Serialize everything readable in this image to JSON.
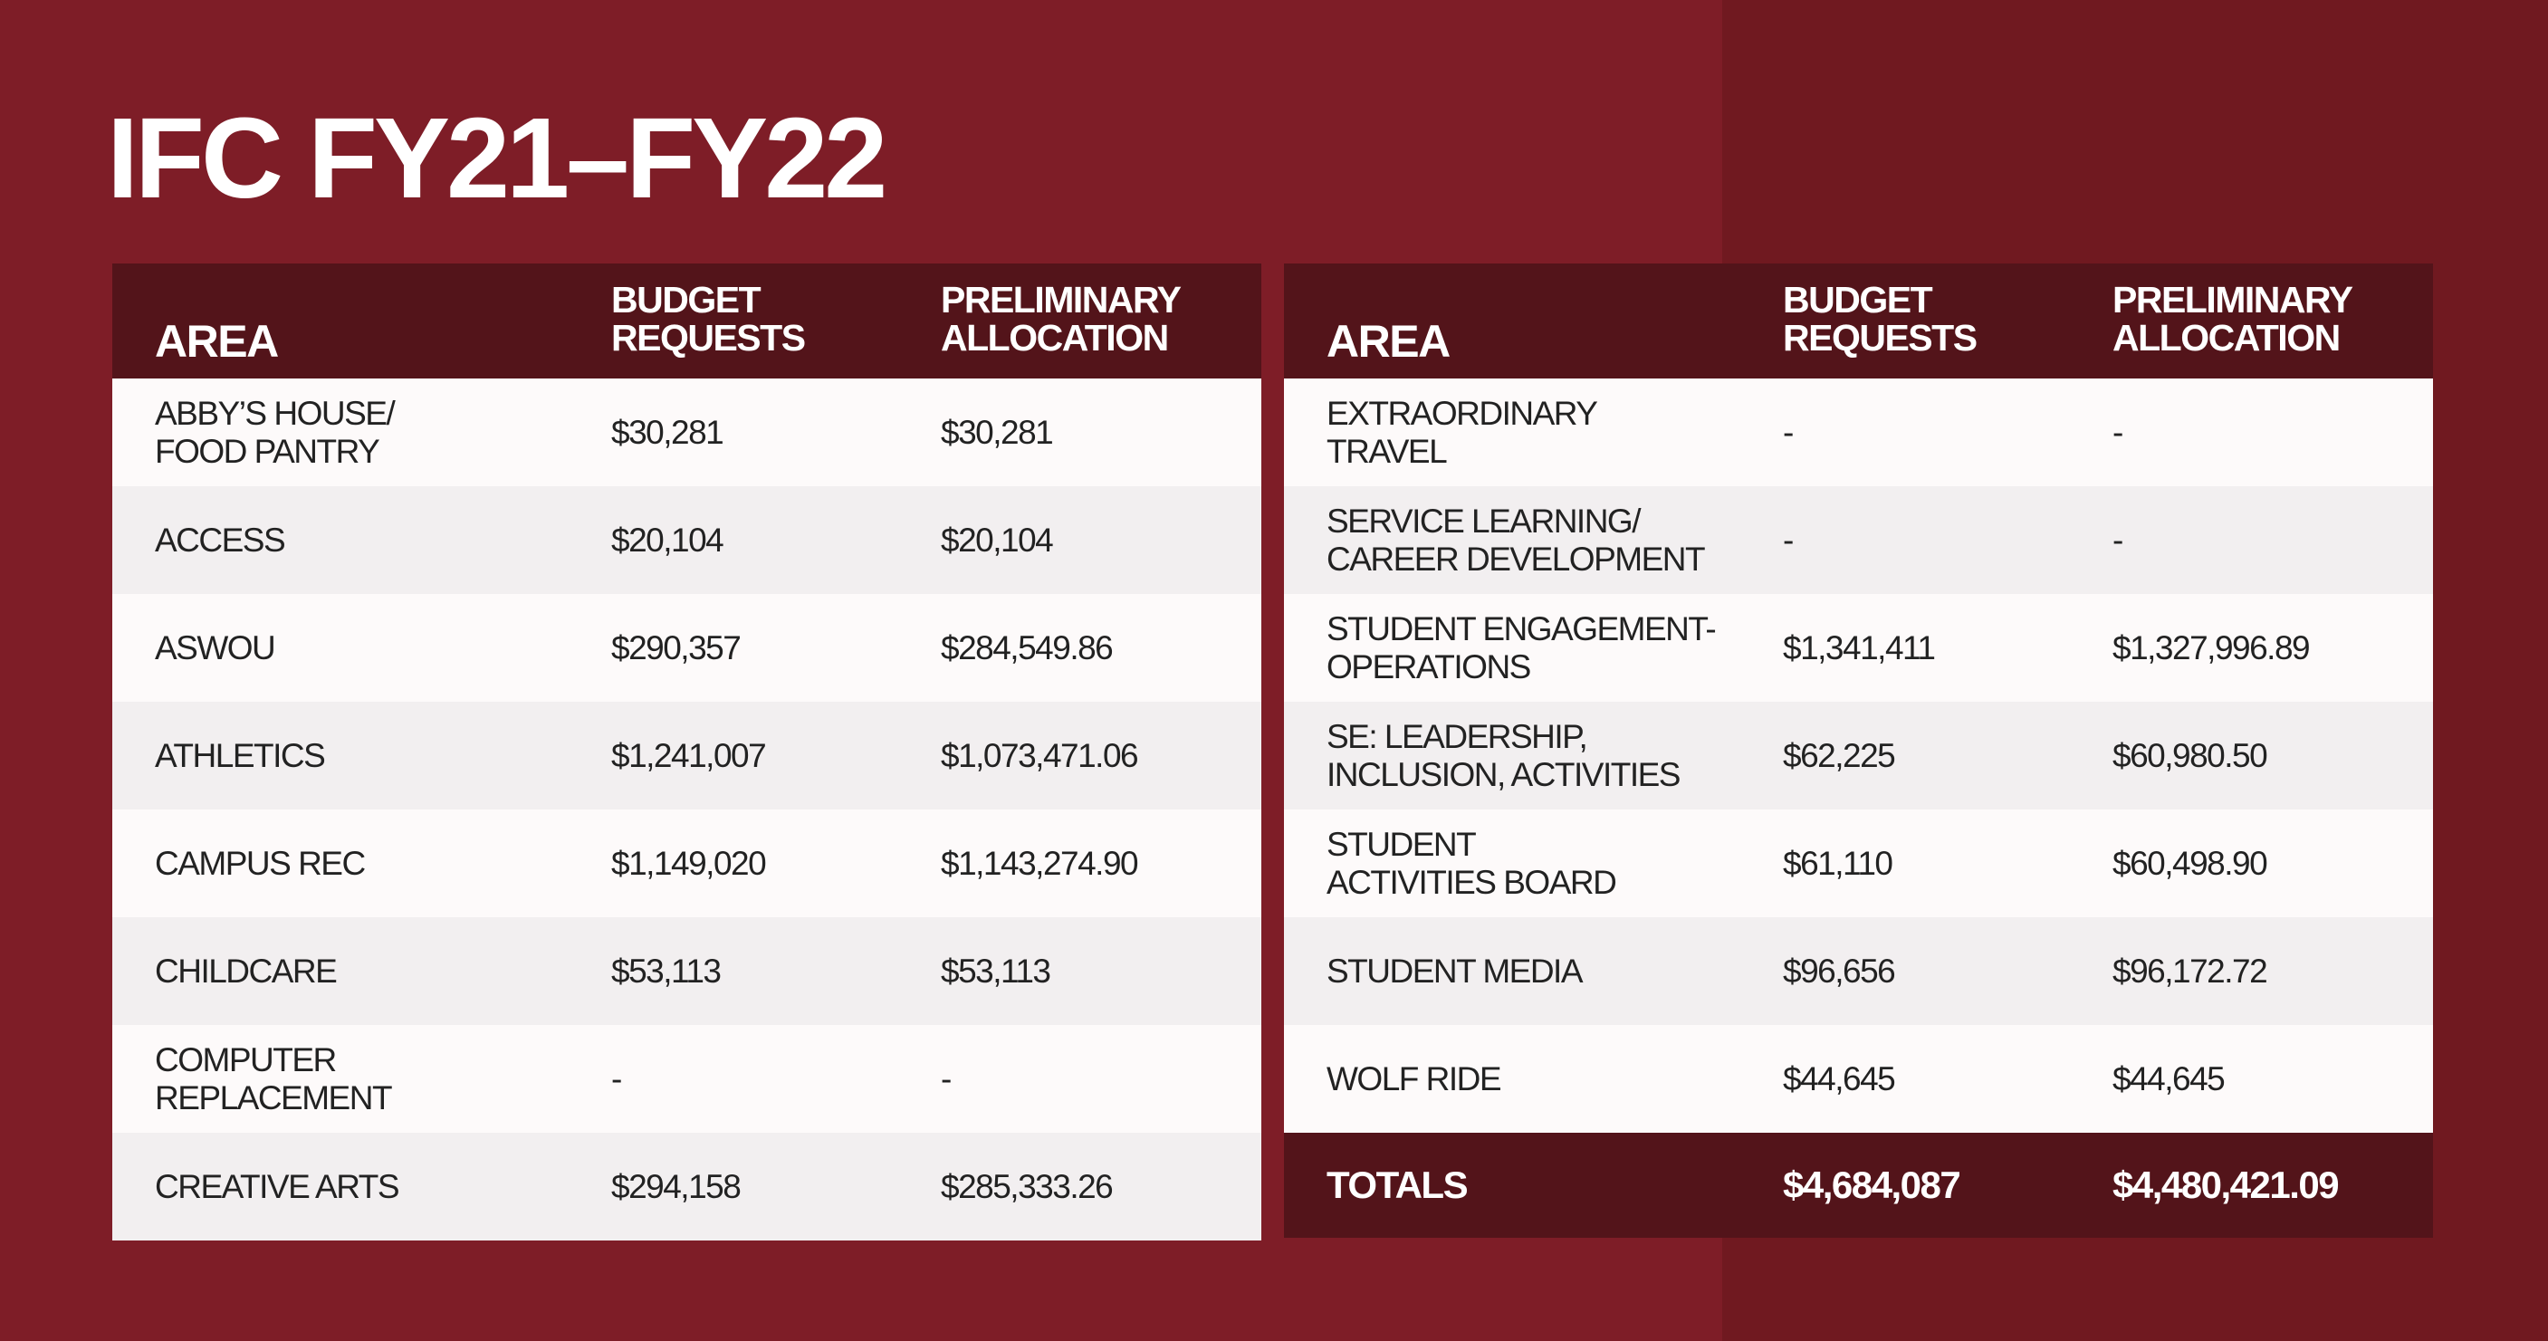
{
  "title": "IFC FY21–FY22",
  "colors": {
    "background": "#7e1d27",
    "background_right": "#701920",
    "header": "#53141a",
    "row_light": "#fdfafa",
    "row_alt": "#f2eff0"
  },
  "columns": {
    "area": "AREA",
    "budget": "BUDGET\nREQUESTS",
    "prelim": "PRELIMINARY\nALLOCATION"
  },
  "left_table": [
    {
      "area": "ABBY’S HOUSE/\nFOOD PANTRY",
      "budget": "$30,281",
      "prelim": "$30,281"
    },
    {
      "area": "ACCESS",
      "budget": "$20,104",
      "prelim": "$20,104"
    },
    {
      "area": "ASWOU",
      "budget": "$290,357",
      "prelim": "$284,549.86"
    },
    {
      "area": "ATHLETICS",
      "budget": "$1,241,007",
      "prelim": "$1,073,471.06"
    },
    {
      "area": "CAMPUS REC",
      "budget": "$1,149,020",
      "prelim": "$1,143,274.90"
    },
    {
      "area": "CHILDCARE",
      "budget": "$53,113",
      "prelim": "$53,113"
    },
    {
      "area": "COMPUTER\nREPLACEMENT",
      "budget": "-",
      "prelim": "-"
    },
    {
      "area": "CREATIVE ARTS",
      "budget": "$294,158",
      "prelim": "$285,333.26"
    }
  ],
  "right_table": [
    {
      "area": "EXTRAORDINARY\nTRAVEL",
      "budget": "-",
      "prelim": "-"
    },
    {
      "area": "SERVICE LEARNING/\nCAREER DEVELOPMENT",
      "budget": "-",
      "prelim": "-"
    },
    {
      "area": "STUDENT ENGAGEMENT-\nOPERATIONS",
      "budget": "$1,341,411",
      "prelim": "$1,327,996.89"
    },
    {
      "area": "SE: LEADERSHIP,\nINCLUSION, ACTIVITIES",
      "budget": "$62,225",
      "prelim": "$60,980.50"
    },
    {
      "area": "STUDENT\nACTIVITIES BOARD",
      "budget": "$61,110",
      "prelim": "$60,498.90"
    },
    {
      "area": "STUDENT MEDIA",
      "budget": "$96,656",
      "prelim": "$96,172.72"
    },
    {
      "area": "WOLF RIDE",
      "budget": "$44,645",
      "prelim": "$44,645"
    }
  ],
  "totals": {
    "label": "TOTALS",
    "budget": "$4,684,087",
    "prelim": "$4,480,421.09"
  }
}
